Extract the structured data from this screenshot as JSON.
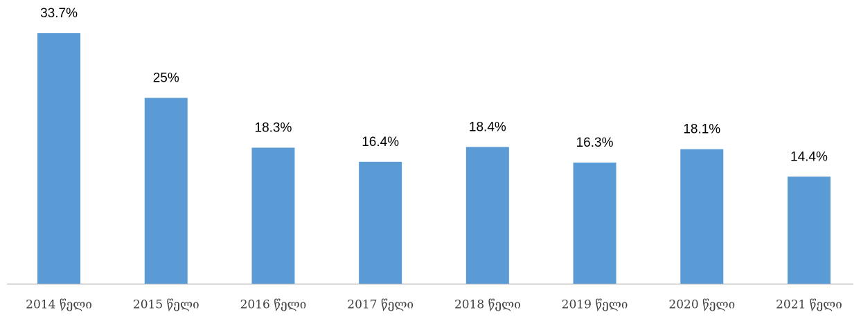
{
  "chart_data": {
    "type": "bar",
    "categories": [
      "2014 წელი",
      "2015 წელი",
      "2016 წელი",
      "2017 წელი",
      "2018 წელი",
      "2019 წელი",
      "2020 წელი",
      "2021 წელი"
    ],
    "values": [
      33.7,
      25,
      18.3,
      16.4,
      18.4,
      16.3,
      18.1,
      14.4
    ],
    "value_labels": [
      "33.7%",
      "25%",
      "18.3%",
      "16.4%",
      "18.4%",
      "16.3%",
      "18.1%",
      "14.4%"
    ],
    "color": "#5b9bd5"
  }
}
